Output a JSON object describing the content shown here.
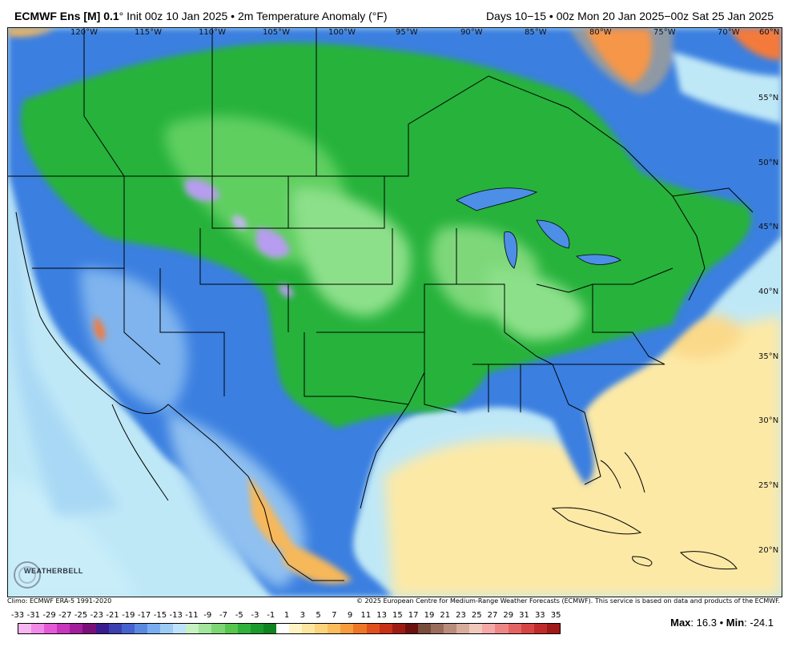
{
  "header": {
    "model": "ECMWF Ens [M] 0.1",
    "degree": "°",
    "init": "Init 00z 10 Jan 2025",
    "sep": "•",
    "field": "2m Temperature Anomaly (°F)",
    "valid": "Days 10−15 • 00z Mon 20 Jan 2025−00z Sat 25 Jan 2025"
  },
  "map": {
    "lon_labels": [
      "120°W",
      "115°W",
      "110°W",
      "105°W",
      "100°W",
      "95°W",
      "90°W",
      "85°W",
      "80°W",
      "75°W",
      "70°W",
      "60°N"
    ],
    "lat_labels": [
      "55°N",
      "50°N",
      "45°N",
      "40°N",
      "35°N",
      "30°N",
      "25°N",
      "20°N"
    ],
    "colors": {
      "ocean_warm": "#fde9a6",
      "ocean_neutral": "#bfe8f7",
      "land_cold_blue": "#3a7fe0",
      "land_green": "#25b23a",
      "land_light_green": "#8de08a",
      "purple": "#b79cf0",
      "canada_warm": "#f47a3a",
      "mexico_warm": "#f7b85a"
    }
  },
  "footer": {
    "climo": "Climo: ECMWF ERA-5 1991-2020",
    "copyright": "© 2025 European Centre for Medium-Range Weather Forecasts (ECMWF). This service is based on data and products of the ECMWF.",
    "logo": "WEATHERBELL"
  },
  "scale": {
    "labels": [
      "-33",
      "-31",
      "-29",
      "-27",
      "-25",
      "-23",
      "-21",
      "-19",
      "-17",
      "-15",
      "-13",
      "-11",
      "-9",
      "-7",
      "-5",
      "-3",
      "-1",
      "1",
      "3",
      "5",
      "7",
      "9",
      "11",
      "13",
      "15",
      "17",
      "19",
      "21",
      "23",
      "25",
      "27",
      "29",
      "31",
      "33",
      "35"
    ],
    "colors": [
      "#f7b6f0",
      "#f08ae6",
      "#e45ad6",
      "#c836be",
      "#a21d9c",
      "#7b0f7a",
      "#3a1c8f",
      "#3c3fb0",
      "#4562cf",
      "#5a8ae0",
      "#78aef0",
      "#9ccbf6",
      "#bfe2fb",
      "#c7f0c3",
      "#a3e59b",
      "#7cd674",
      "#57c64f",
      "#2fb23a",
      "#1b9a2c",
      "#10821f",
      "#ffffff",
      "#fff4c4",
      "#fde6a0",
      "#fcd47c",
      "#fbbc5c",
      "#f79c3c",
      "#ef7624",
      "#e0501c",
      "#c83018",
      "#9e1b14",
      "#6c1010",
      "#7a4c3c",
      "#9a6c5c",
      "#b98c7c",
      "#d7ac9c",
      "#f0c8bc",
      "#f5a8a8",
      "#ee8686",
      "#e46464",
      "#d64444",
      "#c02a2a",
      "#a01818"
    ],
    "max_label": "Max",
    "max_value": ": 16.3",
    "sep": "•",
    "min_label": "Min",
    "min_value": ": -24.1"
  }
}
